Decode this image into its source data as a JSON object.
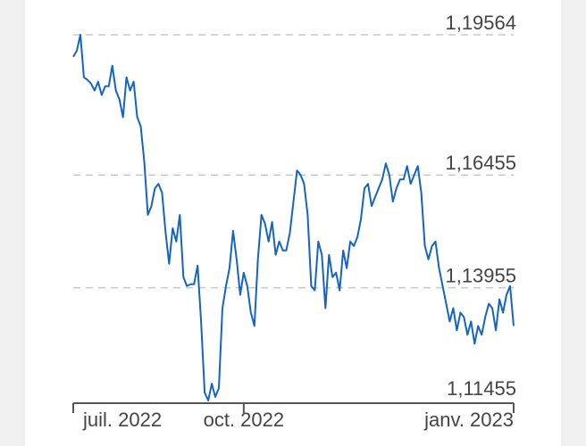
{
  "chart_data": {
    "type": "line",
    "categories": [
      "juil. 2022",
      null,
      null,
      null,
      null,
      null,
      null,
      null,
      null,
      null,
      null,
      null,
      null,
      null,
      null,
      null,
      null,
      null,
      null,
      null,
      null,
      null,
      null,
      null,
      null,
      null,
      null,
      null,
      null,
      null,
      null,
      null,
      null,
      null,
      null,
      null,
      null,
      null,
      null,
      null,
      null,
      null,
      null,
      null,
      null,
      null,
      null,
      null,
      "oct. 2022",
      null,
      null,
      null,
      null,
      null,
      null,
      null,
      null,
      null,
      null,
      null,
      null,
      null,
      null,
      null,
      null,
      null,
      null,
      null,
      null,
      null,
      null,
      null,
      null,
      null,
      null,
      null,
      null,
      null,
      null,
      null,
      null,
      null,
      null,
      null,
      null,
      null,
      null,
      null,
      null,
      null,
      null,
      null,
      null,
      null,
      null,
      null,
      null,
      null,
      null,
      null,
      null,
      null,
      null,
      null,
      null,
      null,
      null,
      null,
      null,
      null,
      null,
      null,
      null,
      null,
      null,
      null,
      null,
      null,
      null,
      null,
      null,
      null,
      null,
      null,
      "janv. 2023"
    ],
    "series": [
      {
        "color": "#1565c0",
        "values": [
          1.19075,
          1.19213,
          1.19564,
          1.18622,
          1.18563,
          1.18484,
          1.18327,
          1.18524,
          1.18228,
          1.18425,
          1.18425,
          1.18878,
          1.18327,
          1.1813,
          1.17736,
          1.18622,
          1.18327,
          1.18524,
          1.17736,
          1.17539,
          1.16752,
          1.1557,
          1.15767,
          1.16161,
          1.16259,
          1.16062,
          1.15176,
          1.14487,
          1.15275,
          1.1498,
          1.1557,
          1.14192,
          1.13995,
          1.14034,
          1.14034,
          1.14448,
          1.13207,
          1.11632,
          1.11455,
          1.11829,
          1.11534,
          1.11731,
          1.13503,
          1.13995,
          1.14389,
          1.15216,
          1.14586,
          1.13798,
          1.1429,
          1.13995,
          1.13404,
          1.13109,
          1.14586,
          1.1557,
          1.15373,
          1.1498,
          1.15413,
          1.14684,
          1.1498,
          1.14783,
          1.14783,
          1.15176,
          1.15866,
          1.16555,
          1.16456,
          1.16259,
          1.1557,
          1.13995,
          1.13897,
          1.1498,
          1.14684,
          1.13503,
          1.14684,
          1.14192,
          1.1429,
          1.13897,
          1.14783,
          1.14389,
          1.1498,
          1.14881,
          1.15078,
          1.15472,
          1.16161,
          1.16259,
          1.15767,
          1.15964,
          1.16161,
          1.16358,
          1.16712,
          1.16456,
          1.15866,
          1.16161,
          1.16358,
          1.16358,
          1.16653,
          1.16259,
          1.16456,
          1.16653,
          1.16062,
          1.14881,
          1.14586,
          1.14881,
          1.1498,
          1.14389,
          1.13995,
          1.13601,
          1.13207,
          1.13503,
          1.13011,
          1.13404,
          1.13306,
          1.12912,
          1.13207,
          1.12715,
          1.13109,
          1.12912,
          1.13306,
          1.13601,
          1.13503,
          1.13011,
          1.137,
          1.13404,
          1.13798,
          1.13995,
          1.13109
        ]
      }
    ],
    "ylim": [
      1.11455,
      1.19564
    ],
    "yticks": [
      {
        "value": 1.11455,
        "label": "1,11455"
      },
      {
        "value": 1.13955,
        "label": "1,13955"
      },
      {
        "value": 1.16455,
        "label": "1,16455"
      },
      {
        "value": 1.19564,
        "label": "1,19564"
      }
    ],
    "grid": true
  }
}
